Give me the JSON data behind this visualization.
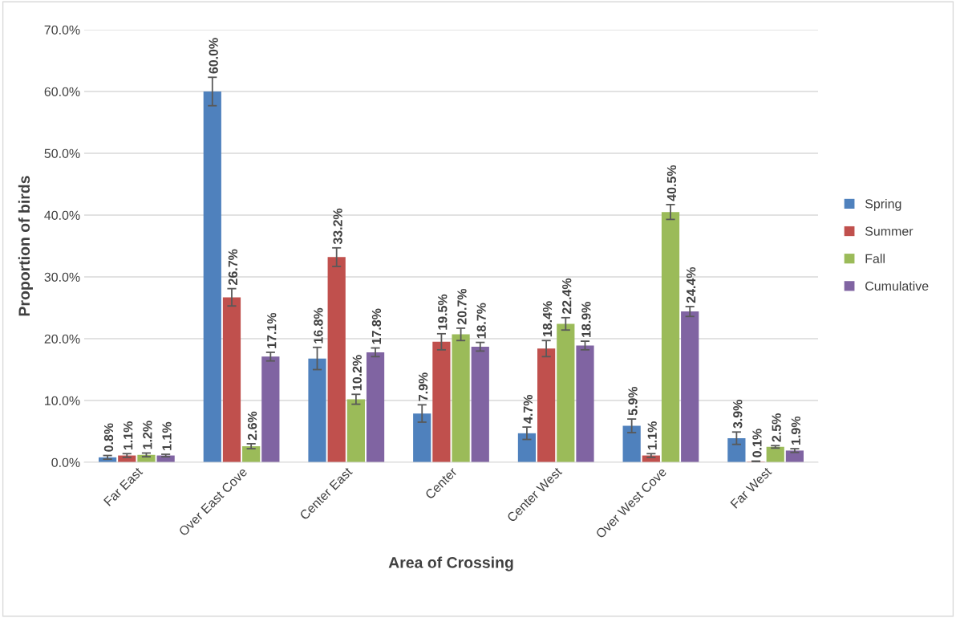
{
  "chart_data": {
    "type": "bar",
    "xlabel": "Area of Crossing",
    "ylabel": "Proportion of birds",
    "categories": [
      "Far East",
      "Over East Cove",
      "Center East",
      "Center",
      "Center West",
      "Over West Cove",
      "Far West"
    ],
    "series": [
      {
        "name": "Spring",
        "color": "#4f81bd",
        "values": [
          0.8,
          60.0,
          16.8,
          7.9,
          4.7,
          5.9,
          3.9
        ],
        "errors": [
          0.3,
          2.3,
          1.8,
          1.4,
          1.0,
          1.1,
          1.0
        ],
        "value_labels": [
          "0.8%",
          "60.0%",
          "16.8%",
          "7.9%",
          "4.7%",
          "5.9%",
          "3.9%"
        ]
      },
      {
        "name": "Summer",
        "color": "#c0504d",
        "values": [
          1.1,
          26.7,
          33.2,
          19.5,
          18.4,
          1.1,
          0.1
        ],
        "errors": [
          0.3,
          1.4,
          1.5,
          1.3,
          1.3,
          0.3,
          0.1
        ],
        "value_labels": [
          "1.1%",
          "26.7%",
          "33.2%",
          "19.5%",
          "18.4%",
          "1.1%",
          "0.1%"
        ]
      },
      {
        "name": "Fall",
        "color": "#9bbb59",
        "values": [
          1.2,
          2.6,
          10.2,
          20.7,
          22.4,
          40.5,
          2.5
        ],
        "errors": [
          0.3,
          0.4,
          0.8,
          1.0,
          1.0,
          1.2,
          0.2
        ],
        "value_labels": [
          "1.2%",
          "2.6%",
          "10.2%",
          "20.7%",
          "22.4%",
          "40.5%",
          "2.5%"
        ]
      },
      {
        "name": "Cumulative",
        "color": "#8064a2",
        "values": [
          1.1,
          17.1,
          17.8,
          18.7,
          18.9,
          24.4,
          1.9
        ],
        "errors": [
          0.2,
          0.7,
          0.7,
          0.7,
          0.7,
          0.8,
          0.3
        ],
        "value_labels": [
          "1.1%",
          "17.1%",
          "17.8%",
          "18.7%",
          "18.9%",
          "24.4%",
          "1.9%"
        ]
      }
    ],
    "ylim": [
      0,
      70
    ],
    "yticks": [
      {
        "value": 0,
        "label": "0.0%"
      },
      {
        "value": 10,
        "label": "10.0%"
      },
      {
        "value": 20,
        "label": "20.0%"
      },
      {
        "value": 30,
        "label": "30.0%"
      },
      {
        "value": 40,
        "label": "40.0%"
      },
      {
        "value": 50,
        "label": "50.0%"
      },
      {
        "value": 60,
        "label": "60.0%"
      },
      {
        "value": 70,
        "label": "70.0%"
      }
    ],
    "grid": "y",
    "legend": "right"
  }
}
